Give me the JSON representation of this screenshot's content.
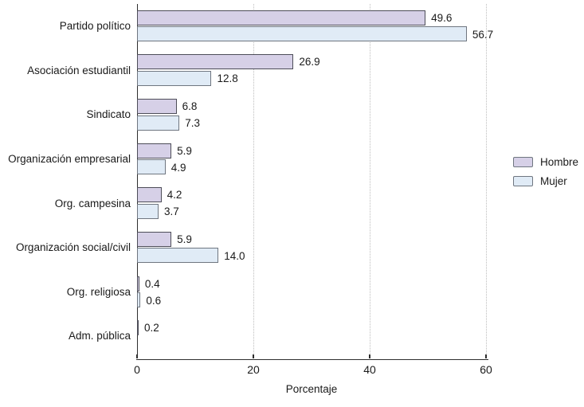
{
  "chart_data": {
    "type": "bar",
    "orientation": "horizontal",
    "title": "",
    "xlabel": "Porcentaje",
    "ylabel": "",
    "xlim": [
      0,
      60
    ],
    "xticks": [
      0,
      20,
      40,
      60
    ],
    "xtick_labels": [
      "0",
      "20",
      "40",
      "60"
    ],
    "grid": "vertical dotted lines at x ticks",
    "legend_position": "right-center",
    "categories": [
      "Partido político",
      "Asociación estudiantil",
      "Sindicato",
      "Organización empresarial",
      "Org. campesina",
      "Organización social/civil",
      "Org. religiosa",
      "Adm. pública"
    ],
    "series": [
      {
        "name": "Hombre",
        "color": "#d6d0e7",
        "border_color": "#4d4d58",
        "values": [
          49.6,
          26.9,
          6.8,
          5.9,
          4.2,
          5.9,
          0.4,
          0.2
        ]
      },
      {
        "name": "Mujer",
        "color": "#e0ebf6",
        "border_color": "#6f7680",
        "values": [
          56.7,
          12.8,
          7.3,
          4.9,
          3.7,
          14.0,
          0.6,
          null
        ]
      }
    ],
    "value_labels": [
      [
        "49.6",
        "26.9",
        "6.8",
        "5.9",
        "4.2",
        "5.9",
        "0.4",
        "0.2"
      ],
      [
        "56.7",
        "12.8",
        "7.3",
        "4.9",
        "3.7",
        "14.0",
        "0.6",
        null
      ]
    ]
  },
  "colors": {
    "axis": "#2e2e2e",
    "gridline": "#bdbdbd",
    "text": "#1a1a1a",
    "background": "#ffffff"
  }
}
